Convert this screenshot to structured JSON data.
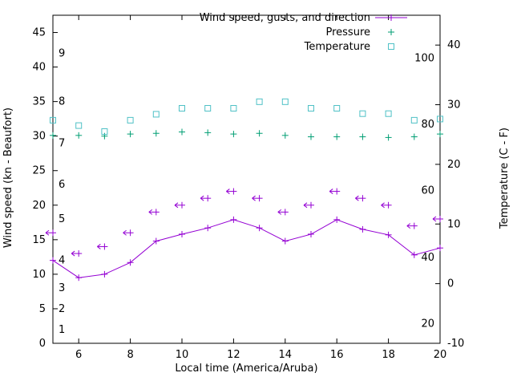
{
  "chart_data": {
    "type": "line",
    "title": "",
    "xlabel": "Local time (America/Aruba)",
    "ylabel_left": "Wind speed (kn - Beaufort)",
    "ylabel_right": "Temperature (C - F)",
    "xlim": [
      5,
      20
    ],
    "xticks": [
      6,
      8,
      10,
      12,
      14,
      16,
      18,
      20
    ],
    "ylim_left": [
      0,
      47.5
    ],
    "yticks_left": [
      0,
      5,
      10,
      15,
      20,
      25,
      30,
      35,
      40,
      45
    ],
    "ylim_right": [
      -10,
      45
    ],
    "yticks_right": [
      -10,
      0,
      10,
      20,
      30,
      40
    ],
    "grid": false,
    "legend_position": "top-right-inside",
    "background": "#ffffff",
    "axis_color": "#000000",
    "beaufort_scale_labels": [
      {
        "text": "1",
        "kn": 2
      },
      {
        "text": "2",
        "kn": 5
      },
      {
        "text": "3",
        "kn": 8
      },
      {
        "text": "4",
        "kn": 12
      },
      {
        "text": "5",
        "kn": 18
      },
      {
        "text": "6",
        "kn": 23
      },
      {
        "text": "7",
        "kn": 29
      },
      {
        "text": "8",
        "kn": 35
      },
      {
        "text": "9",
        "kn": 42
      }
    ],
    "fahrenheit_scale_labels": [
      {
        "text": "20",
        "c": -6.7
      },
      {
        "text": "40",
        "c": 4.4
      },
      {
        "text": "60",
        "c": 15.6
      },
      {
        "text": "80",
        "c": 26.7
      },
      {
        "text": "100",
        "c": 37.8
      }
    ],
    "x": [
      5,
      6,
      7,
      8,
      9,
      10,
      11,
      12,
      13,
      14,
      15,
      16,
      17,
      18,
      19,
      20
    ],
    "series": [
      {
        "id": "wind-speed",
        "legend": "Wind speed, gusts, and direction",
        "axis": "left",
        "color": "#9400d3",
        "marker": "plus",
        "line": true,
        "values": [
          12,
          9.5,
          10,
          11.7,
          14.8,
          15.8,
          16.7,
          17.9,
          16.7,
          14.8,
          15.8,
          17.9,
          16.5,
          15.7,
          12.8,
          13.8
        ]
      },
      {
        "id": "wind-gusts",
        "legend": "",
        "axis": "left",
        "color": "#9400d3",
        "marker": "arrow",
        "line": false,
        "values": [
          16,
          13,
          14,
          16,
          19,
          20,
          21,
          22,
          21,
          19,
          20,
          22,
          21,
          20,
          17,
          18
        ]
      },
      {
        "id": "pressure",
        "legend": "Pressure",
        "axis": "left",
        "color": "#009e73",
        "marker": "plus",
        "line": false,
        "values": [
          30.1,
          30.1,
          30.0,
          30.3,
          30.4,
          30.6,
          30.5,
          30.3,
          30.4,
          30.1,
          29.9,
          29.9,
          29.9,
          29.8,
          29.9,
          30.3
        ]
      },
      {
        "id": "temperature",
        "legend": "Temperature",
        "axis": "right",
        "color": "#4fc1c6",
        "marker": "square",
        "line": false,
        "values": [
          27.4,
          26.5,
          25.5,
          27.4,
          28.4,
          29.4,
          29.4,
          29.4,
          30.5,
          30.5,
          29.4,
          29.4,
          28.5,
          28.5,
          27.4,
          27.6
        ]
      }
    ]
  }
}
